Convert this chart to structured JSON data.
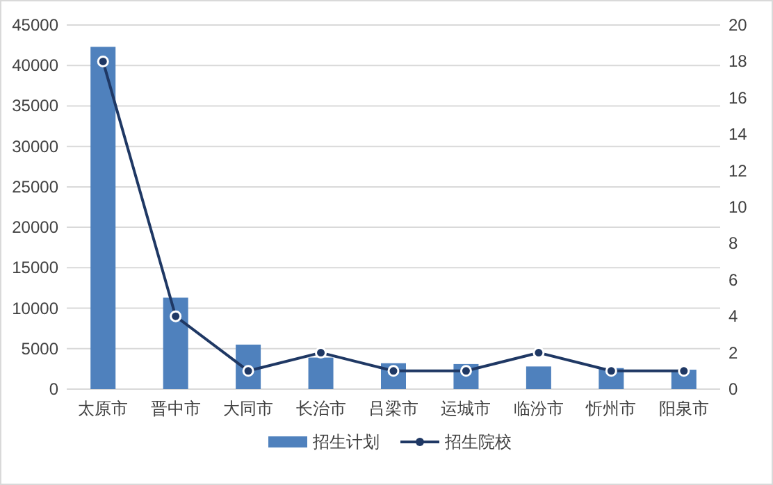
{
  "chart_data": {
    "type": "bar",
    "categories": [
      "太原市",
      "晋中市",
      "大同市",
      "长治市",
      "吕梁市",
      "运城市",
      "临汾市",
      "忻州市",
      "阳泉市"
    ],
    "series": [
      {
        "name": "招生计划",
        "color": "#4f81bd",
        "values": [
          42300,
          11300,
          5500,
          3900,
          3200,
          3100,
          2800,
          2600,
          2400
        ]
      },
      {
        "name": "招生院校",
        "type": "line",
        "axis": "y2",
        "color": "#1f3864",
        "marker": "circle",
        "values": [
          18,
          4,
          1,
          2,
          1,
          1,
          2,
          1,
          1
        ]
      }
    ],
    "ylim": [
      0,
      45000
    ],
    "yticks": [
      0,
      5000,
      10000,
      15000,
      20000,
      25000,
      30000,
      35000,
      40000,
      45000
    ],
    "y2lim": [
      0,
      20
    ],
    "y2ticks": [
      0,
      2,
      4,
      6,
      8,
      10,
      12,
      14,
      16,
      18,
      20
    ],
    "grid": "y",
    "legend": "bottom"
  }
}
